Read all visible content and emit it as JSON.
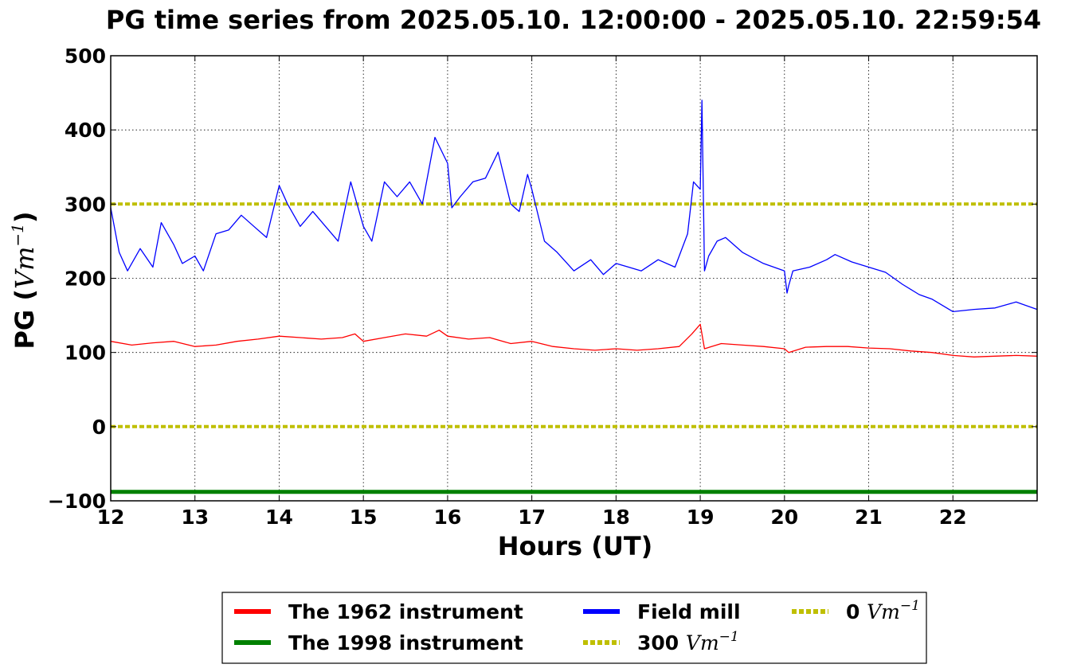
{
  "chart_data": {
    "type": "line",
    "title": "PG time series from 2025.05.10. 12:00:00 - 2025.05.10. 22:59:54",
    "xlabel": "Hours (UT)",
    "ylabel_prefix": "PG (",
    "ylabel_math": "Vm",
    "ylabel_exp": "−1",
    "ylabel_suffix": ")",
    "xlim": [
      12,
      23
    ],
    "ylim": [
      -100,
      500
    ],
    "x_ticks": [
      12,
      13,
      14,
      15,
      16,
      17,
      18,
      19,
      20,
      21,
      22
    ],
    "x_tick_labels": [
      "12",
      "13",
      "14",
      "15",
      "16",
      "17",
      "18",
      "19",
      "20",
      "21",
      "22"
    ],
    "y_ticks": [
      -100,
      0,
      100,
      200,
      300,
      400,
      500
    ],
    "y_tick_labels": [
      "−100",
      "0",
      "100",
      "200",
      "300",
      "400",
      "500"
    ],
    "grid": true,
    "legend_position": "bottom-center, below the plot",
    "series": [
      {
        "name": "The 1962 instrument",
        "color": "#ff0000",
        "x": [
          12.0,
          12.25,
          12.5,
          12.75,
          13.0,
          13.25,
          13.5,
          13.75,
          14.0,
          14.25,
          14.5,
          14.75,
          14.9,
          15.0,
          15.25,
          15.5,
          15.75,
          15.9,
          16.0,
          16.25,
          16.5,
          16.75,
          17.0,
          17.25,
          17.5,
          17.75,
          18.0,
          18.25,
          18.5,
          18.75,
          18.9,
          19.0,
          19.05,
          19.25,
          19.5,
          19.75,
          20.0,
          20.05,
          20.25,
          20.5,
          20.75,
          21.0,
          21.25,
          21.5,
          21.75,
          22.0,
          22.25,
          22.5,
          22.75,
          23.0
        ],
        "values": [
          115,
          110,
          113,
          115,
          108,
          110,
          115,
          118,
          122,
          120,
          118,
          120,
          125,
          115,
          120,
          125,
          122,
          130,
          122,
          118,
          120,
          112,
          115,
          108,
          105,
          103,
          105,
          103,
          105,
          108,
          125,
          138,
          105,
          112,
          110,
          108,
          105,
          100,
          107,
          108,
          108,
          106,
          105,
          102,
          100,
          96,
          94,
          95,
          96,
          95
        ]
      },
      {
        "name": "The 1998 instrument",
        "color": "#008000",
        "x": [
          12.0,
          23.0
        ],
        "values": [
          -88,
          -88
        ]
      },
      {
        "name": "Field mill",
        "color": "#0000ff",
        "x": [
          12.0,
          12.1,
          12.2,
          12.35,
          12.5,
          12.6,
          12.75,
          12.85,
          13.0,
          13.1,
          13.25,
          13.4,
          13.55,
          13.7,
          13.85,
          14.0,
          14.1,
          14.25,
          14.4,
          14.55,
          14.7,
          14.85,
          15.0,
          15.1,
          15.25,
          15.4,
          15.55,
          15.7,
          15.85,
          16.0,
          16.05,
          16.15,
          16.3,
          16.45,
          16.6,
          16.75,
          16.85,
          16.95,
          17.0,
          17.15,
          17.3,
          17.5,
          17.7,
          17.85,
          18.0,
          18.15,
          18.3,
          18.5,
          18.7,
          18.85,
          18.92,
          19.0,
          19.02,
          19.05,
          19.1,
          19.2,
          19.3,
          19.5,
          19.75,
          20.0,
          20.03,
          20.05,
          20.1,
          20.3,
          20.5,
          20.6,
          20.8,
          21.0,
          21.2,
          21.4,
          21.6,
          21.75,
          22.0,
          22.25,
          22.5,
          22.75,
          23.0
        ],
        "values": [
          295,
          235,
          210,
          240,
          215,
          275,
          245,
          220,
          230,
          210,
          260,
          265,
          285,
          270,
          255,
          325,
          300,
          270,
          290,
          270,
          250,
          330,
          270,
          250,
          330,
          310,
          330,
          300,
          390,
          355,
          295,
          310,
          330,
          335,
          370,
          300,
          290,
          340,
          320,
          250,
          235,
          210,
          225,
          205,
          220,
          215,
          210,
          225,
          215,
          260,
          330,
          320,
          440,
          210,
          230,
          250,
          255,
          235,
          220,
          210,
          180,
          190,
          210,
          215,
          225,
          232,
          222,
          215,
          208,
          192,
          178,
          172,
          155,
          158,
          160,
          168,
          158
        ]
      },
      {
        "name": "300 Vm−1",
        "legend_prefix": "300",
        "legend_math": "Vm",
        "legend_exp": "−1",
        "color": "#bfbf00",
        "style": "dotted",
        "x": [
          12.0,
          23.0
        ],
        "values": [
          300,
          300
        ]
      },
      {
        "name": "0 Vm−1",
        "legend_prefix": "0",
        "legend_math": "Vm",
        "legend_exp": "−1",
        "color": "#bfbf00",
        "style": "dotted",
        "x": [
          12.0,
          23.0
        ],
        "values": [
          0,
          0
        ]
      }
    ]
  }
}
